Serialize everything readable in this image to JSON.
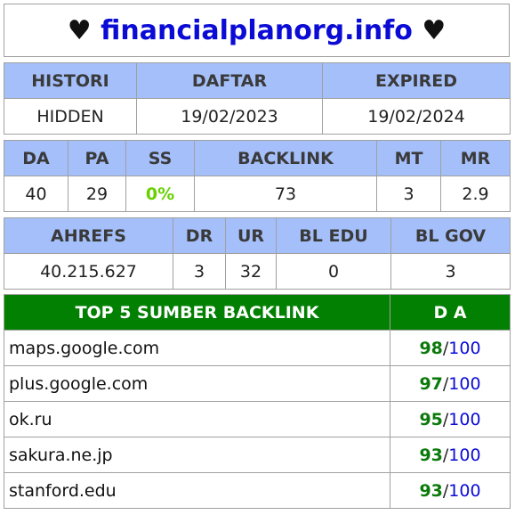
{
  "title": {
    "heart_left": "♥",
    "domain": "financialplanorg.info",
    "heart_right": "♥"
  },
  "domain_info": {
    "headers": [
      "HISTORI",
      "DAFTAR",
      "EXPIRED"
    ],
    "values": [
      "HIDDEN",
      "19/02/2023",
      "19/02/2024"
    ]
  },
  "moz": {
    "headers": [
      "DA",
      "PA",
      "SS",
      "BACKLINK",
      "MT",
      "MR"
    ],
    "values": [
      "40",
      "29",
      "0%",
      "73",
      "3",
      "2.9"
    ]
  },
  "ahrefs": {
    "headers": [
      "AHREFS",
      "DR",
      "UR",
      "BL EDU",
      "BL GOV"
    ],
    "values": [
      "40.215.627",
      "3",
      "32",
      "0",
      "3"
    ]
  },
  "top_backlinks": {
    "header_source": "TOP 5 SUMBER BACKLINK",
    "header_da": "D A",
    "rows": [
      {
        "site": "maps.google.com",
        "da": "98",
        "max": "100",
        "sep": "/"
      },
      {
        "site": "plus.google.com",
        "da": "97",
        "max": "100",
        "sep": "/"
      },
      {
        "site": "ok.ru",
        "da": "95",
        "max": "100",
        "sep": "/"
      },
      {
        "site": "sakura.ne.jp",
        "da": "93",
        "max": "100",
        "sep": "/"
      },
      {
        "site": "stanford.edu",
        "da": "93",
        "max": "100",
        "sep": "/"
      }
    ]
  },
  "colors": {
    "header_blue": "#a4bffa",
    "header_green": "#028002",
    "link_blue": "#0b0bd6",
    "da_green": "#0b7a0b",
    "ss_green": "#67d100"
  }
}
